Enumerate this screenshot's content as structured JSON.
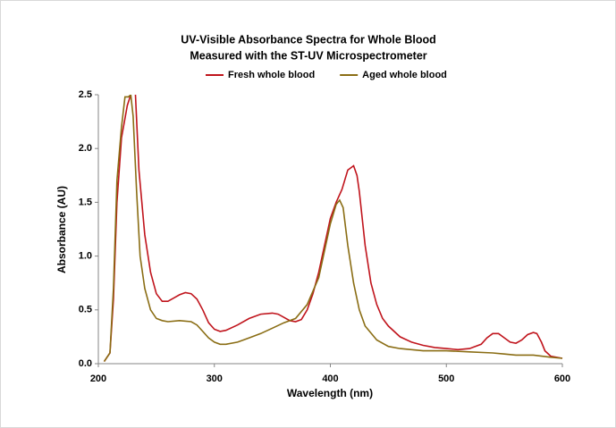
{
  "chart_data": {
    "type": "line",
    "title": "UV-Visible Absorbance Spectra for Whole Blood",
    "subtitle": "Measured with the ST-UV Microspectrometer",
    "xlabel": "Wavelength (nm)",
    "ylabel": "Absorbance (AU)",
    "xlim": [
      200,
      600
    ],
    "xticks": [
      200,
      300,
      400,
      500,
      600
    ],
    "ylim": [
      0,
      2.5
    ],
    "yticks": [
      {
        "value": 0,
        "label": "0.0"
      },
      {
        "value": 0.5,
        "label": "0.5"
      },
      {
        "value": 1,
        "label": "1.0"
      },
      {
        "value": 1.5,
        "label": "1.5"
      },
      {
        "value": 2,
        "label": "2.0"
      },
      {
        "value": 2.5,
        "label": "2.5"
      }
    ],
    "grid": false,
    "legend": "top",
    "series": [
      {
        "name": "Fresh whole blood",
        "color": "#c0141c",
        "x": [
          205,
          210,
          213,
          216,
          220,
          225,
          228,
          230,
          232,
          235,
          240,
          245,
          250,
          255,
          260,
          265,
          270,
          275,
          280,
          285,
          290,
          295,
          300,
          305,
          310,
          320,
          330,
          340,
          350,
          355,
          360,
          365,
          370,
          375,
          380,
          385,
          390,
          395,
          400,
          405,
          410,
          415,
          420,
          423,
          425,
          430,
          435,
          440,
          445,
          450,
          460,
          470,
          480,
          490,
          500,
          510,
          520,
          530,
          535,
          540,
          545,
          550,
          555,
          560,
          565,
          570,
          575,
          578,
          582,
          585,
          590,
          600
        ],
        "values": [
          0.02,
          0.1,
          0.6,
          1.5,
          2.1,
          2.4,
          2.5,
          2.6,
          2.5,
          1.8,
          1.2,
          0.85,
          0.65,
          0.58,
          0.58,
          0.61,
          0.64,
          0.66,
          0.65,
          0.6,
          0.5,
          0.38,
          0.32,
          0.3,
          0.31,
          0.36,
          0.42,
          0.46,
          0.47,
          0.46,
          0.43,
          0.4,
          0.39,
          0.41,
          0.5,
          0.65,
          0.85,
          1.1,
          1.35,
          1.5,
          1.62,
          1.8,
          1.84,
          1.75,
          1.6,
          1.1,
          0.75,
          0.55,
          0.42,
          0.35,
          0.25,
          0.2,
          0.17,
          0.15,
          0.14,
          0.13,
          0.14,
          0.18,
          0.24,
          0.28,
          0.28,
          0.24,
          0.2,
          0.19,
          0.22,
          0.27,
          0.29,
          0.28,
          0.2,
          0.12,
          0.07,
          0.05
        ]
      },
      {
        "name": "Aged whole blood",
        "color": "#8a6d14",
        "x": [
          205,
          210,
          213,
          216,
          220,
          223,
          226,
          228,
          230,
          233,
          236,
          240,
          245,
          250,
          255,
          260,
          270,
          280,
          285,
          290,
          295,
          300,
          305,
          310,
          320,
          330,
          340,
          350,
          360,
          370,
          380,
          390,
          395,
          400,
          405,
          408,
          411,
          415,
          420,
          425,
          430,
          440,
          450,
          460,
          470,
          480,
          490,
          500,
          520,
          540,
          550,
          560,
          575,
          590,
          600
        ],
        "values": [
          0.02,
          0.1,
          0.7,
          1.7,
          2.2,
          2.48,
          2.48,
          2.5,
          2.3,
          1.6,
          1.0,
          0.7,
          0.5,
          0.42,
          0.4,
          0.39,
          0.4,
          0.39,
          0.36,
          0.3,
          0.24,
          0.2,
          0.18,
          0.18,
          0.2,
          0.24,
          0.28,
          0.33,
          0.38,
          0.42,
          0.55,
          0.8,
          1.05,
          1.3,
          1.48,
          1.52,
          1.45,
          1.1,
          0.75,
          0.5,
          0.35,
          0.22,
          0.16,
          0.14,
          0.13,
          0.12,
          0.12,
          0.12,
          0.11,
          0.1,
          0.09,
          0.08,
          0.08,
          0.06,
          0.05
        ]
      }
    ]
  }
}
